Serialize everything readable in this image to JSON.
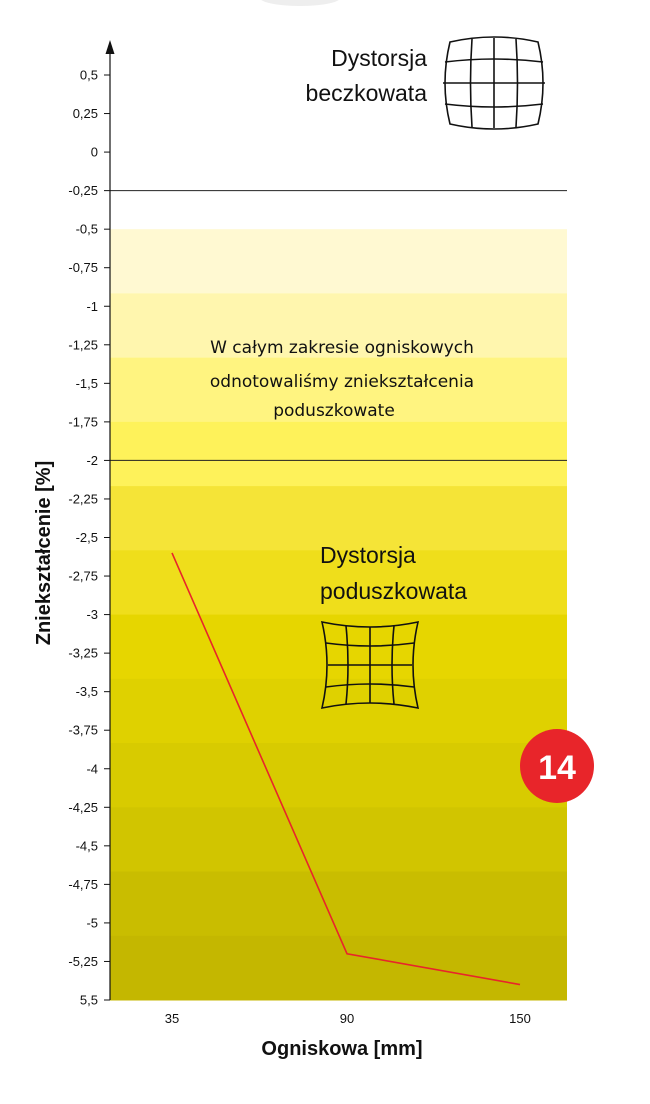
{
  "chart_data": {
    "type": "line",
    "xlabel": "Ogniskowa [mm]",
    "ylabel": "Zniekształcenie [%]",
    "x_ticks": [
      "35",
      "90",
      "150"
    ],
    "y_ticks": [
      "0,5",
      "0,25",
      "0",
      "-0,25",
      "-0,5",
      "-0,75",
      "-1",
      "-1,25",
      "-1,5",
      "-1,75",
      "-2",
      "-2,25",
      "-2,5",
      "-2,75",
      "-3",
      "-3,25",
      "-3,5",
      "-3,75",
      "-4",
      "-4,25",
      "-4,5",
      "-4,75",
      "-5",
      "-5,25",
      "5,5"
    ],
    "ylim": [
      -5.5,
      0.5
    ],
    "reference_lines": [
      -0.25,
      -2
    ],
    "series": [
      {
        "x": [
          35,
          90,
          150
        ],
        "values": [
          -2.6,
          -5.2,
          -5.4
        ],
        "color": "#e8252a"
      }
    ],
    "bands_from": -0.5,
    "band_colors": [
      "#fff9d2",
      "#fff6ae",
      "#fff480",
      "#fef25a",
      "#f5e437",
      "#efde1b",
      "#e6d600",
      "#dfd100",
      "#d8cb00",
      "#d1c500",
      "#c9bd00",
      "#c4b700"
    ]
  },
  "annotations": {
    "barrel_line1": "Dystorsja",
    "barrel_line2": "beczkowata",
    "pincushion_line1": "Dystorsja",
    "pincushion_line2": "poduszkowata",
    "note_line1": "W całym zakresie ogniskowych",
    "note_line2": "odnotowaliśmy zniekształcenia",
    "note_line3": "poduszkowate",
    "icon_barrel": "barrel-distortion-grid-icon",
    "icon_pincushion": "pincushion-distortion-grid-icon"
  },
  "badge": {
    "text": "14",
    "color": "#e8252a"
  }
}
